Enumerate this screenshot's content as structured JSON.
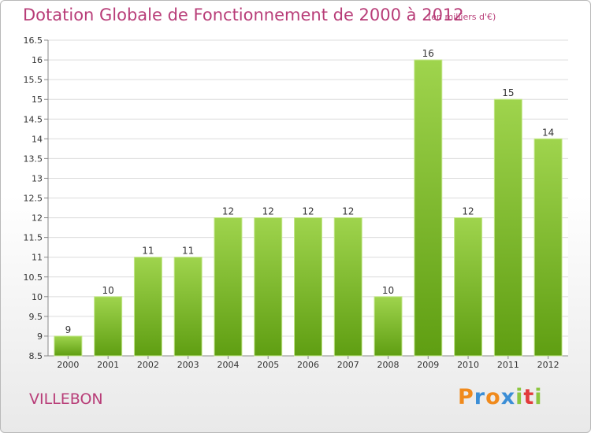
{
  "title": "Dotation Globale de Fonctionnement de 2000 à 2012",
  "subtitle": "(en milliers d'€)",
  "city": "VILLEBON",
  "logo": {
    "letters": [
      "P",
      "r",
      "o",
      "x",
      "i",
      "t",
      "i"
    ],
    "colors": [
      "#f08a1c",
      "#3b8ed6",
      "#f08a1c",
      "#3b8ed6",
      "#8cc63e",
      "#e23b3b",
      "#8cc63e"
    ]
  },
  "colors": {
    "bar_top": "#9fd44d",
    "bar_bottom": "#5f9e12",
    "bar_edge": "#c5e88d",
    "title": "#b83d78"
  },
  "chart_data": {
    "type": "bar",
    "categories": [
      "2000",
      "2001",
      "2002",
      "2003",
      "2004",
      "2005",
      "2006",
      "2007",
      "2008",
      "2009",
      "2010",
      "2011",
      "2012"
    ],
    "values": [
      9,
      10,
      11,
      11,
      12,
      12,
      12,
      12,
      10,
      16,
      12,
      15,
      14
    ],
    "data_labels": [
      "9",
      "10",
      "11",
      "11",
      "12",
      "12",
      "12",
      "12",
      "10",
      "16",
      "12",
      "15",
      "14"
    ],
    "yticks": [
      "8.5",
      "9",
      "9.5",
      "10",
      "10.5",
      "11",
      "11.5",
      "12",
      "12.5",
      "13",
      "13.5",
      "14",
      "14.5",
      "15",
      "15.5",
      "16",
      "16.5"
    ],
    "ylim": [
      8.5,
      16.5
    ],
    "grid": true,
    "xlabel": "",
    "ylabel": ""
  }
}
